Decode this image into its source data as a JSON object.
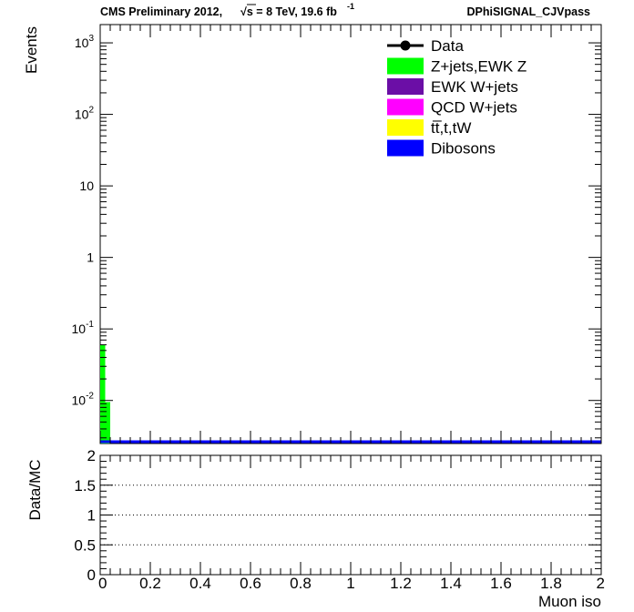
{
  "header": {
    "left_prefix": "CMS Preliminary 2012,",
    "sqrt_s": "s",
    "energy_lumi": " = 8 TeV, 19.6 fb",
    "lumi_exp": "-1",
    "right": "DPhiSIGNAL_CJVpass"
  },
  "chart_data": [
    {
      "type": "bar",
      "ylabel": "Events",
      "yscale": "log",
      "xlim": [
        0,
        2
      ],
      "ylim": [
        0.0025,
        1800
      ],
      "y_ticks": [
        {
          "value": 0.01,
          "base": "10",
          "exp": "-2"
        },
        {
          "value": 0.1,
          "base": "10",
          "exp": "-1"
        },
        {
          "value": 1,
          "base": "1",
          "exp": ""
        },
        {
          "value": 10,
          "base": "10",
          "exp": ""
        },
        {
          "value": 100,
          "base": "10",
          "exp": "2"
        },
        {
          "value": 1000,
          "base": "10",
          "exp": "3"
        }
      ],
      "bin_width": 0.02,
      "legend": [
        {
          "label": "Data",
          "kind": "marker",
          "color": "#000000"
        },
        {
          "label": "Z+jets,EWK Z",
          "kind": "fill",
          "color": "#00ff00"
        },
        {
          "label": "EWK W+jets",
          "kind": "fill",
          "color": "#6b0ea6"
        },
        {
          "label": "QCD W+jets",
          "kind": "fill",
          "color": "#ff00ff"
        },
        {
          "label": "tt̅,t,tW",
          "kind": "fill",
          "color": "#ffff00"
        },
        {
          "label": "Dibosons",
          "kind": "fill",
          "color": "#0000ff"
        }
      ],
      "series": [
        {
          "name": "Z+jets,EWK Z",
          "color": "#00ff00",
          "bins": [
            [
              0.0,
              0.06
            ],
            [
              0.02,
              0.0095
            ]
          ]
        }
      ],
      "baseline_color": "#0000ff"
    },
    {
      "type": "line",
      "ylabel": "Data/MC",
      "xlabel": "Muon iso",
      "xlim": [
        0,
        2
      ],
      "ylim": [
        0,
        2
      ],
      "x_ticks": [
        "0",
        "0.2",
        "0.4",
        "0.6",
        "0.8",
        "1",
        "1.2",
        "1.4",
        "1.6",
        "1.8",
        "2"
      ],
      "y_ticks": [
        "0",
        "0.5",
        "1",
        "1.5",
        "2"
      ],
      "dotted_lines": [
        0.5,
        1,
        1.5
      ]
    }
  ]
}
